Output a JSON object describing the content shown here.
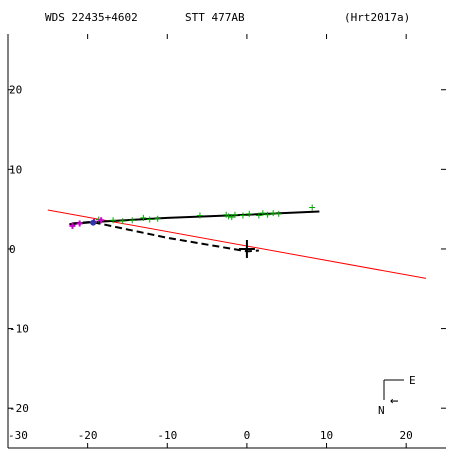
{
  "header": {
    "left": "WDS 22435+4602",
    "center": "STT 477AB",
    "right": "(Hrt2017a)"
  },
  "compass": {
    "east_label": "E",
    "north_label": "N",
    "arrow_glyph": "←"
  },
  "colors": {
    "background": "#ffffff",
    "axes": "#000000",
    "orbit": "#000000",
    "observations": "#00aa00",
    "recent_obs": "#cc00cc",
    "recent_point": "#3333aa",
    "reference_line": "#ff0000"
  },
  "chart_data": {
    "type": "scatter",
    "xlim": [
      -30,
      25
    ],
    "ylim": [
      -25,
      27
    ],
    "x_reversed": false,
    "grid": false,
    "xticks": [
      -30,
      -20,
      -10,
      0,
      10,
      20
    ],
    "xtick_labels": [
      "-30",
      "-20",
      "-10",
      "0",
      "10",
      "20"
    ],
    "yticks": [
      -20,
      -10,
      0,
      10,
      20
    ],
    "ytick_labels": [
      "-20",
      "-10",
      "0",
      "10",
      "20"
    ],
    "primary": {
      "x": 0,
      "y": 0,
      "marker": "cross"
    },
    "orbit_line": {
      "x": [
        -22.3,
        -19.0,
        -10.0,
        0.0,
        9.1
      ],
      "y": [
        3.1,
        3.4,
        3.9,
        4.3,
        4.7
      ]
    },
    "dashed_line": {
      "x": [
        -22.0,
        -19.5,
        -10.0,
        0.0,
        1.5
      ],
      "y": [
        3.2,
        3.4,
        1.4,
        -0.3,
        -0.2
      ]
    },
    "reference_line": {
      "x": [
        -25.0,
        22.5
      ],
      "y": [
        4.9,
        -3.7
      ]
    },
    "observations": [
      {
        "x": 8.2,
        "y": 5.2
      },
      {
        "x": 4.0,
        "y": 4.4
      },
      {
        "x": 3.3,
        "y": 4.5
      },
      {
        "x": 2.6,
        "y": 4.3
      },
      {
        "x": 2.0,
        "y": 4.5
      },
      {
        "x": 1.5,
        "y": 4.2
      },
      {
        "x": 0.3,
        "y": 4.4
      },
      {
        "x": -0.5,
        "y": 4.2
      },
      {
        "x": -1.5,
        "y": 4.3
      },
      {
        "x": -1.9,
        "y": 4.0
      },
      {
        "x": -2.3,
        "y": 4.1
      },
      {
        "x": -2.6,
        "y": 4.3
      },
      {
        "x": -5.9,
        "y": 4.2
      },
      {
        "x": -11.2,
        "y": 3.8
      },
      {
        "x": -12.2,
        "y": 3.7
      },
      {
        "x": -13.0,
        "y": 3.9
      },
      {
        "x": -14.4,
        "y": 3.6
      },
      {
        "x": -15.6,
        "y": 3.5
      },
      {
        "x": -16.8,
        "y": 3.6
      },
      {
        "x": -18.6,
        "y": 3.7
      }
    ],
    "recent_observations": [
      {
        "x": -21.9,
        "y": 2.9
      },
      {
        "x": -21.0,
        "y": 3.2
      },
      {
        "x": -19.2,
        "y": 3.4
      },
      {
        "x": -18.3,
        "y": 3.6
      }
    ],
    "recent_point": {
      "x": -19.3,
      "y": 3.3
    }
  }
}
